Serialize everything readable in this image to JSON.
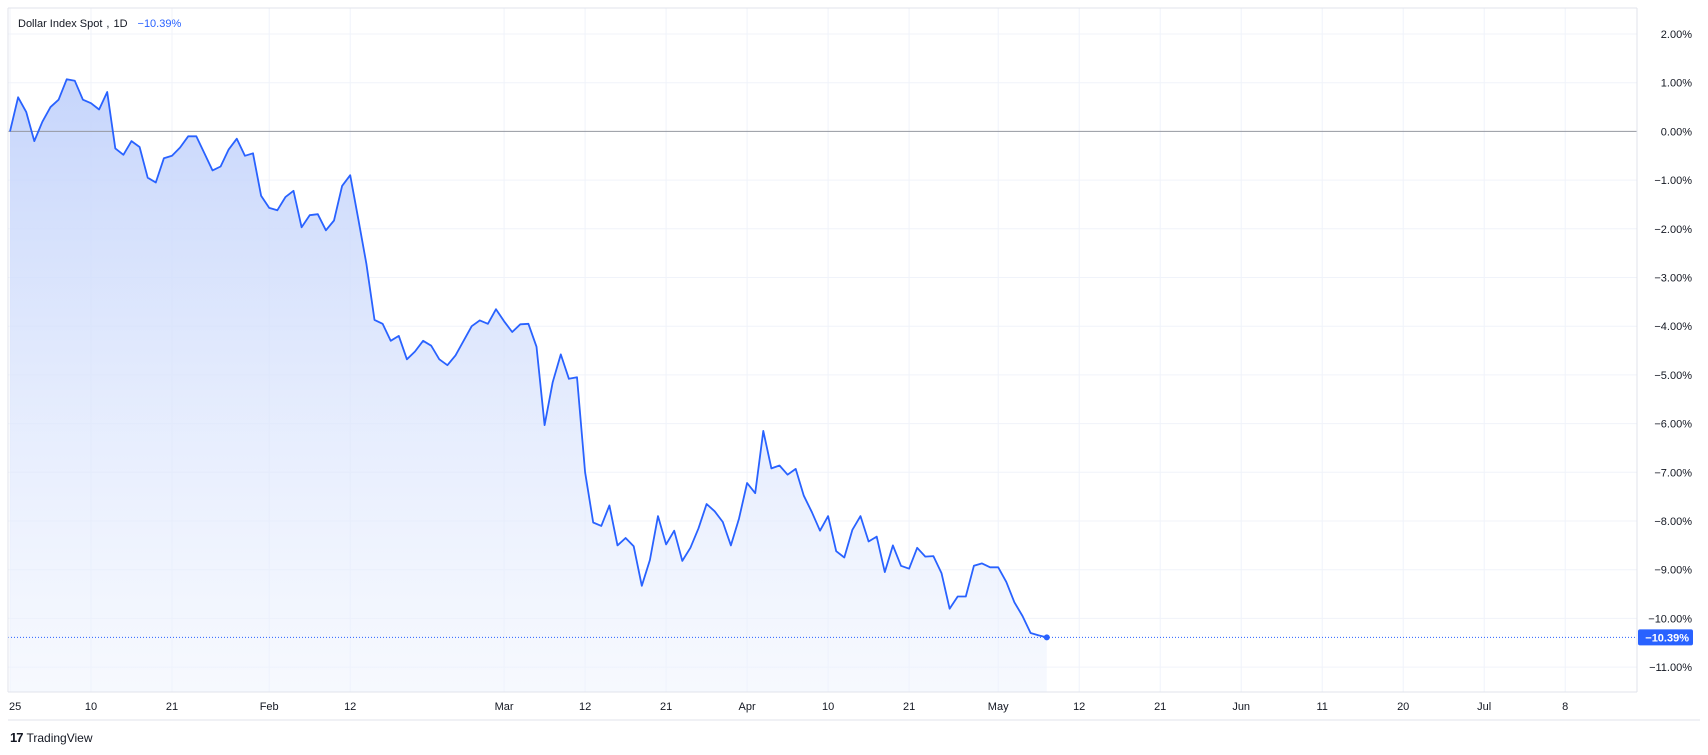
{
  "legend": {
    "symbol": "Dollar Index Spot",
    "interval": "1D",
    "change": "−10.39%"
  },
  "brand": {
    "logo": "17",
    "name": "TradingView"
  },
  "colors": {
    "line": "#2962ff",
    "fill_top": "#c9d7fb",
    "grid": "#f0f3fa",
    "zero": "#9598a1",
    "tag": "#2962ff"
  },
  "chart_data": {
    "type": "area",
    "title": "",
    "xlabel": "",
    "ylabel": "",
    "ylim": [
      -11.5,
      2.5
    ],
    "y_ticks": [
      2,
      1,
      0,
      -1,
      -2,
      -3,
      -4,
      -5,
      -6,
      -7,
      -8,
      -9,
      -10,
      -11
    ],
    "y_tick_labels": [
      "2.00%",
      "1.00%",
      "0.00%",
      "−1.00%",
      "−2.00%",
      "−3.00%",
      "−4.00%",
      "−5.00%",
      "−6.00%",
      "−7.00%",
      "−8.00%",
      "−9.00%",
      "−10.00%",
      "−11.00%"
    ],
    "x_tick_labels": [
      "25",
      "10",
      "21",
      "Feb",
      "12",
      "Mar",
      "12",
      "21",
      "Apr",
      "10",
      "21",
      "May",
      "12",
      "21",
      "Jun",
      "11",
      "20",
      "Jul",
      "8"
    ],
    "x_tick_index": [
      0,
      10,
      20,
      32,
      42,
      61,
      71,
      81,
      91,
      101,
      111,
      122,
      132,
      142,
      152,
      162,
      172,
      182,
      192
    ],
    "last_value_label": "−10.39%",
    "grid": true,
    "series": [
      {
        "values": [
          0.0,
          0.7,
          0.4,
          -0.2,
          0.2,
          0.5,
          0.65,
          1.07,
          1.04,
          0.65,
          0.58,
          0.45,
          0.81,
          -0.35,
          -0.48,
          -0.2,
          -0.32,
          -0.95,
          -1.05,
          -0.55,
          -0.5,
          -0.33,
          -0.1,
          -0.1,
          -0.45,
          -0.8,
          -0.72,
          -0.37,
          -0.15,
          -0.5,
          -0.45,
          -1.32,
          -1.57,
          -1.62,
          -1.35,
          -1.22,
          -1.97,
          -1.72,
          -1.7,
          -2.03,
          -1.83,
          -1.12,
          -0.9,
          -1.8,
          -2.72,
          -3.87,
          -3.95,
          -4.3,
          -4.2,
          -4.68,
          -4.52,
          -4.3,
          -4.4,
          -4.68,
          -4.8,
          -4.6,
          -4.3,
          -4.0,
          -3.88,
          -3.95,
          -3.65,
          -3.9,
          -4.12,
          -3.96,
          -3.95,
          -4.42,
          -6.03,
          -5.15,
          -4.58,
          -5.08,
          -5.05,
          -7.0,
          -8.03,
          -8.1,
          -7.68,
          -8.5,
          -8.35,
          -8.52,
          -9.33,
          -8.8,
          -7.9,
          -8.48,
          -8.2,
          -8.82,
          -8.55,
          -8.15,
          -7.65,
          -7.8,
          -8.02,
          -8.5,
          -7.95,
          -7.22,
          -7.43,
          -6.15,
          -6.92,
          -6.86,
          -7.05,
          -6.93,
          -7.48,
          -7.82,
          -8.2,
          -7.9,
          -8.62,
          -8.75,
          -8.18,
          -7.9,
          -8.42,
          -8.32,
          -9.05,
          -8.5,
          -8.92,
          -8.98,
          -8.55,
          -8.73,
          -8.72,
          -9.07,
          -9.8,
          -9.55,
          -9.55,
          -8.92,
          -8.87,
          -8.95,
          -8.95,
          -9.25,
          -9.67,
          -9.95,
          -10.3,
          -10.35,
          -10.39
        ]
      }
    ]
  }
}
